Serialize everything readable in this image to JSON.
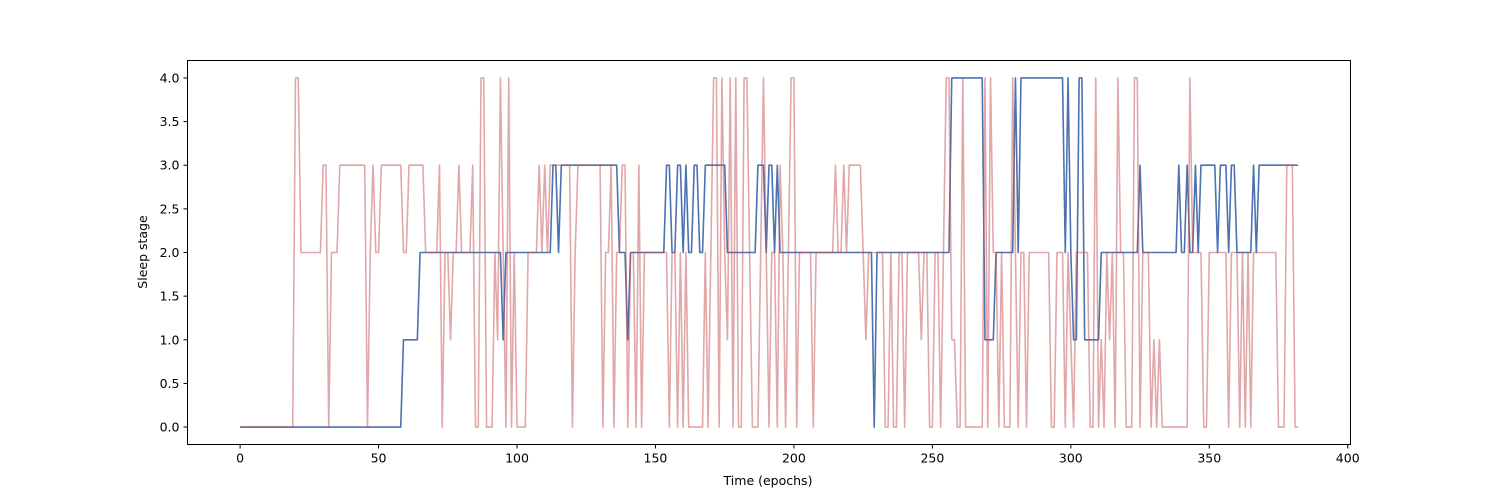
{
  "chart_data": {
    "type": "line",
    "title": "",
    "xlabel": "Time (epochs)",
    "ylabel": "Sleep stage",
    "xlim": [
      -19,
      401
    ],
    "ylim": [
      -0.2,
      4.2
    ],
    "xticks": [
      0,
      50,
      100,
      150,
      200,
      250,
      300,
      350,
      400
    ],
    "xtick_labels": [
      "0",
      "50",
      "100",
      "150",
      "200",
      "250",
      "300",
      "350",
      "400"
    ],
    "yticks": [
      0,
      0.5,
      1,
      1.5,
      2,
      2.5,
      3,
      3.5,
      4
    ],
    "ytick_labels": [
      "0.0",
      "0.5",
      "1.0",
      "1.5",
      "2.0",
      "2.5",
      "3.0",
      "3.5",
      "4.0"
    ],
    "grid": false,
    "legend": "none",
    "series": [
      {
        "color": "#4c72b0",
        "opacity": 1,
        "values": [
          0,
          0,
          0,
          0,
          0,
          0,
          0,
          0,
          0,
          0,
          0,
          0,
          0,
          0,
          0,
          0,
          0,
          0,
          0,
          0,
          0,
          0,
          0,
          0,
          0,
          0,
          0,
          0,
          0,
          0,
          0,
          0,
          0,
          0,
          0,
          0,
          0,
          0,
          0,
          0,
          0,
          0,
          0,
          0,
          0,
          0,
          0,
          0,
          0,
          0,
          0,
          0,
          0,
          0,
          0,
          0,
          0,
          0,
          0,
          1,
          1,
          1,
          1,
          1,
          1,
          2,
          2,
          2,
          2,
          2,
          2,
          2,
          2,
          2,
          2,
          2,
          2,
          2,
          2,
          2,
          2,
          2,
          2,
          2,
          2,
          2,
          2,
          2,
          2,
          2,
          2,
          2,
          2,
          2,
          2,
          1,
          2,
          2,
          2,
          2,
          2,
          2,
          2,
          2,
          2,
          2,
          2,
          2,
          2,
          2,
          2,
          2,
          2,
          3,
          3,
          2,
          3,
          3,
          3,
          3,
          3,
          3,
          3,
          3,
          3,
          3,
          3,
          3,
          3,
          3,
          3,
          3,
          3,
          3,
          3,
          3,
          3,
          2,
          2,
          2,
          1,
          2,
          2,
          2,
          2,
          2,
          2,
          2,
          2,
          2,
          2,
          2,
          2,
          2,
          3,
          3,
          2,
          2,
          3,
          3,
          2,
          3,
          2,
          2,
          3,
          3,
          2,
          2,
          3,
          3,
          3,
          3,
          3,
          3,
          3,
          3,
          2,
          2,
          2,
          2,
          2,
          2,
          2,
          2,
          2,
          2,
          2,
          3,
          3,
          3,
          2,
          3,
          3,
          2,
          3,
          2,
          2,
          2,
          2,
          2,
          2,
          2,
          2,
          2,
          2,
          2,
          2,
          2,
          2,
          2,
          2,
          2,
          2,
          2,
          2,
          2,
          2,
          2,
          2,
          2,
          2,
          2,
          2,
          2,
          2,
          2,
          2,
          2,
          2,
          0,
          2,
          2,
          2,
          2,
          2,
          2,
          2,
          2,
          2,
          2,
          2,
          2,
          2,
          2,
          2,
          2,
          2,
          2,
          2,
          2,
          2,
          2,
          2,
          2,
          2,
          2,
          2,
          4,
          4,
          4,
          4,
          4,
          4,
          4,
          4,
          4,
          4,
          4,
          4,
          1,
          1,
          1,
          1,
          2,
          2,
          2,
          2,
          2,
          2,
          2,
          4,
          2,
          4,
          4,
          4,
          4,
          4,
          4,
          4,
          4,
          4,
          4,
          4,
          4,
          4,
          4,
          4,
          4,
          2,
          4,
          2,
          1,
          1,
          4,
          4,
          1,
          1,
          1,
          1,
          1,
          1,
          2,
          2,
          2,
          2,
          2,
          2,
          2,
          2,
          2,
          2,
          2,
          2,
          2,
          2,
          3,
          2,
          2,
          2,
          2,
          2,
          2,
          2,
          2,
          2,
          2,
          2,
          2,
          2,
          3,
          2,
          2,
          3,
          2,
          2,
          3,
          2,
          3,
          3,
          3,
          3,
          3,
          3,
          2,
          3,
          3,
          3,
          2,
          3,
          3,
          2,
          2,
          2,
          2,
          2,
          2,
          3,
          2,
          3,
          3,
          3,
          3,
          3,
          3,
          3,
          3,
          3,
          3,
          3,
          3,
          3,
          3,
          3
        ]
      },
      {
        "color": "#c44e52",
        "opacity": 0.5,
        "values": [
          0,
          0,
          0,
          0,
          0,
          0,
          0,
          0,
          0,
          0,
          0,
          0,
          0,
          0,
          0,
          0,
          0,
          0,
          0,
          0,
          4,
          4,
          2,
          2,
          2,
          2,
          2,
          2,
          2,
          2,
          3,
          3,
          0,
          2,
          2,
          2,
          3,
          3,
          3,
          3,
          3,
          3,
          3,
          3,
          3,
          3,
          0,
          2,
          3,
          2,
          2,
          3,
          3,
          3,
          3,
          3,
          3,
          3,
          3,
          2,
          2,
          3,
          3,
          3,
          3,
          3,
          3,
          2,
          2,
          2,
          2,
          2,
          3,
          0,
          2,
          2,
          1,
          2,
          2,
          3,
          2,
          2,
          2,
          2,
          3,
          0,
          0,
          4,
          4,
          0,
          0,
          0,
          2,
          1,
          4,
          2,
          0,
          4,
          0,
          2,
          0,
          0,
          0,
          0,
          2,
          2,
          2,
          2,
          3,
          2,
          3,
          2,
          3,
          3,
          3,
          3,
          3,
          3,
          3,
          3,
          0,
          2,
          3,
          3,
          3,
          3,
          3,
          3,
          3,
          3,
          3,
          0,
          2,
          2,
          3,
          0,
          2,
          2,
          3,
          3,
          0,
          2,
          2,
          0,
          3,
          0,
          2,
          2,
          2,
          2,
          2,
          2,
          2,
          2,
          2,
          0,
          2,
          2,
          0,
          2,
          0,
          2,
          0,
          0,
          0,
          0,
          0,
          0,
          2,
          0,
          2,
          4,
          4,
          0,
          4,
          2,
          1,
          4,
          0,
          4,
          0,
          0,
          4,
          4,
          2,
          0,
          0,
          0,
          2,
          4,
          2,
          0,
          2,
          2,
          0,
          3,
          2,
          0,
          2,
          4,
          4,
          0,
          2,
          2,
          2,
          2,
          2,
          0,
          2,
          2,
          2,
          2,
          2,
          2,
          2,
          3,
          2,
          2,
          3,
          2,
          3,
          3,
          3,
          3,
          3,
          2,
          1,
          2,
          2,
          2,
          2,
          2,
          2,
          0,
          0,
          2,
          0,
          0,
          2,
          2,
          0,
          2,
          2,
          2,
          2,
          2,
          1,
          2,
          2,
          0,
          0,
          2,
          2,
          0,
          2,
          4,
          4,
          1,
          1,
          0,
          0,
          4,
          0,
          0,
          0,
          0,
          0,
          0,
          0,
          4,
          0,
          4,
          2,
          2,
          0,
          2,
          0,
          0,
          0,
          4,
          2,
          0,
          2,
          2,
          0,
          2,
          2,
          2,
          2,
          2,
          2,
          2,
          2,
          0,
          0,
          2,
          2,
          2,
          0,
          2,
          1,
          0,
          2,
          2,
          2,
          2,
          2,
          0,
          0,
          4,
          0,
          1,
          0,
          2,
          1,
          2,
          0,
          4,
          2,
          2,
          0,
          0,
          0,
          4,
          4,
          0,
          2,
          2,
          2,
          0,
          1,
          0,
          1,
          0,
          0,
          0,
          0,
          0,
          0,
          0,
          0,
          0,
          0,
          4,
          2,
          2,
          2,
          2,
          0,
          0,
          2,
          2,
          2,
          2,
          2,
          2,
          2,
          0,
          2,
          2,
          2,
          0,
          2,
          0,
          2,
          0,
          2,
          2,
          2,
          2,
          2,
          2,
          2,
          2,
          2,
          0,
          0,
          0,
          3,
          3,
          3,
          0,
          0
        ]
      }
    ]
  }
}
